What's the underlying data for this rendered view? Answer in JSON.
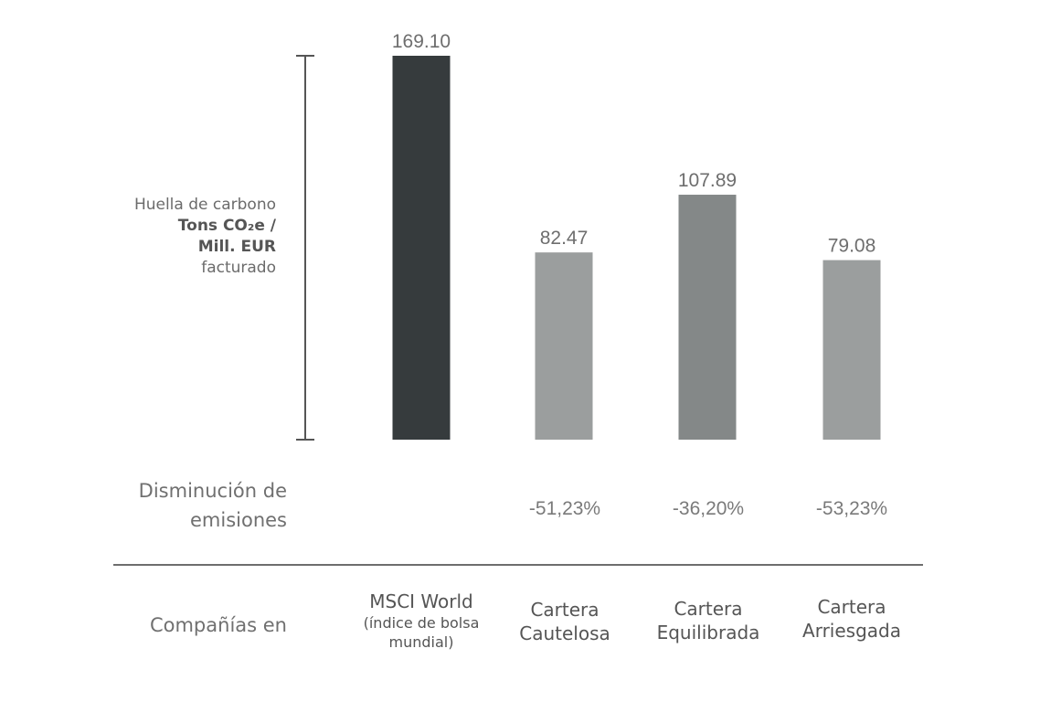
{
  "chart_data": {
    "type": "bar",
    "categories": [
      "MSCI World",
      "Cartera Cautelosa",
      "Cartera Equilibrada",
      "Cartera Arriesgada"
    ],
    "category_sublabels": [
      "(índice de bolsa mundial)",
      "",
      "",
      ""
    ],
    "values": [
      169.1,
      82.47,
      107.89,
      79.08
    ],
    "value_labels": [
      "169.10",
      "82.47",
      "107.89",
      "79.08"
    ],
    "bar_colors": [
      "#363b3d",
      "#9b9e9e",
      "#848888",
      "#9b9e9e"
    ],
    "ylim": [
      0,
      169.1
    ],
    "ylabel": {
      "line1": "Huella de carbono",
      "line2": "Tons CO₂e /",
      "line3": "Mill. EUR",
      "line4": "facturado"
    },
    "reduction_label": {
      "line1": "Disminución de",
      "line2": "emisiones"
    },
    "reductions": [
      "",
      "-51,23%",
      "-36,20%",
      "-53,23%"
    ],
    "xlabel": "Compañías en",
    "grid": false,
    "legend": "none"
  }
}
